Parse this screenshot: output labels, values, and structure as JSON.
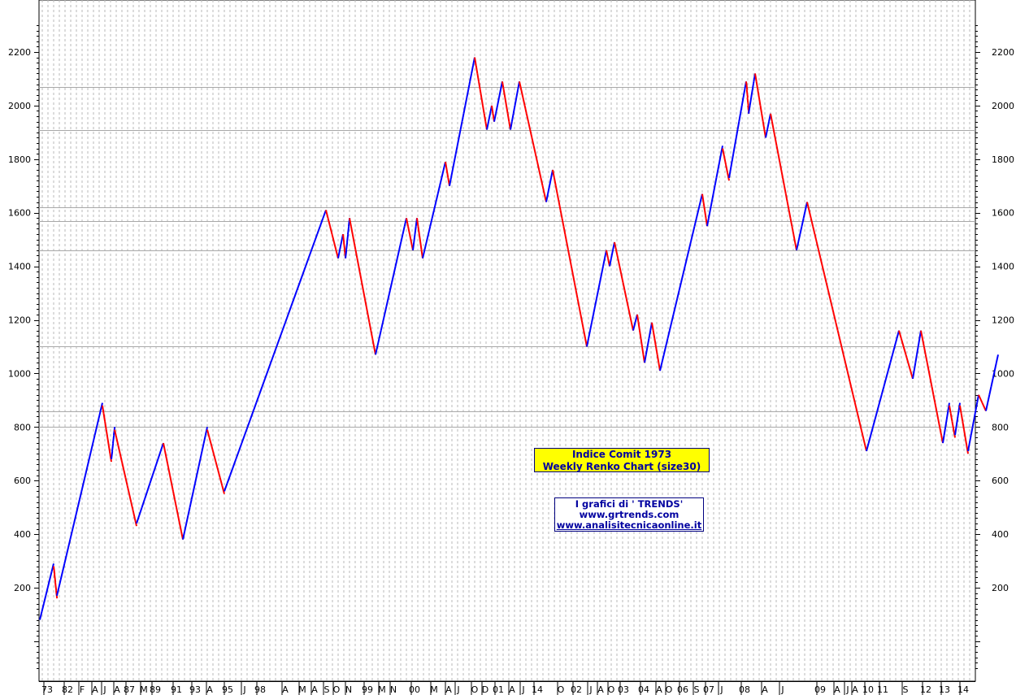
{
  "chart_data": {
    "type": "renko",
    "title": "Indice Comit 1973",
    "subtitle": "Weekly Renko Chart  (size30)",
    "brick_size": 30,
    "ylim": [
      -150,
      2350
    ],
    "y_ticks": [
      200,
      400,
      600,
      800,
      1000,
      1200,
      1400,
      1600,
      1800,
      2000,
      2200
    ],
    "y_tick_labels": [
      "200",
      "400",
      "600",
      "800",
      "1000",
      "1200",
      "1400",
      "1600",
      "1800",
      "2000",
      "2200"
    ],
    "x_labels": [
      "73",
      "82",
      "F",
      "A",
      "J",
      "A",
      "87",
      "M",
      "89",
      "91",
      "93",
      "A",
      "95",
      "J",
      "98",
      "A",
      "M",
      "A",
      "S",
      "O",
      "N",
      "99",
      "M",
      "N",
      "00",
      "M",
      "A",
      "J",
      "O",
      "D",
      "01",
      "A",
      "J",
      "14",
      "O",
      "02",
      "J",
      "A",
      "O",
      "03",
      "04",
      "A",
      "O",
      "06",
      "S",
      "07",
      "J",
      "08",
      "A",
      "J",
      "09",
      "A",
      "J",
      "A",
      "10",
      "11",
      "S",
      "12",
      "13",
      "14"
    ],
    "horizontal_levels": [
      2070,
      1910,
      1620,
      1570,
      1460,
      1100,
      860,
      800
    ],
    "grid": "vertical dashed",
    "up_color": "#0000ff",
    "down_color": "#ff0000",
    "pivots": [
      {
        "x": 1,
        "price": 80
      },
      {
        "x": 18,
        "price": 280
      },
      {
        "x": 22,
        "price": 170
      },
      {
        "x": 78,
        "price": 880
      },
      {
        "x": 89,
        "price": 680
      },
      {
        "x": 93,
        "price": 790
      },
      {
        "x": 120,
        "price": 440
      },
      {
        "x": 153,
        "price": 740
      },
      {
        "x": 177,
        "price": 380
      },
      {
        "x": 207,
        "price": 790
      },
      {
        "x": 228,
        "price": 560
      },
      {
        "x": 353,
        "price": 1610
      },
      {
        "x": 368,
        "price": 1430
      },
      {
        "x": 374,
        "price": 1520
      },
      {
        "x": 377,
        "price": 1430
      },
      {
        "x": 382,
        "price": 1580
      },
      {
        "x": 414,
        "price": 1070
      },
      {
        "x": 452,
        "price": 1580
      },
      {
        "x": 460,
        "price": 1460
      },
      {
        "x": 465,
        "price": 1580
      },
      {
        "x": 472,
        "price": 1430
      },
      {
        "x": 500,
        "price": 1790
      },
      {
        "x": 505,
        "price": 1700
      },
      {
        "x": 536,
        "price": 2180
      },
      {
        "x": 551,
        "price": 1910
      },
      {
        "x": 557,
        "price": 2000
      },
      {
        "x": 560,
        "price": 1940
      },
      {
        "x": 570,
        "price": 2090
      },
      {
        "x": 580,
        "price": 1910
      },
      {
        "x": 591,
        "price": 2090
      },
      {
        "x": 624,
        "price": 1640
      },
      {
        "x": 632,
        "price": 1760
      },
      {
        "x": 674,
        "price": 1100
      },
      {
        "x": 698,
        "price": 1460
      },
      {
        "x": 702,
        "price": 1400
      },
      {
        "x": 708,
        "price": 1490
      },
      {
        "x": 731,
        "price": 1160
      },
      {
        "x": 736,
        "price": 1220
      },
      {
        "x": 745,
        "price": 1040
      },
      {
        "x": 754,
        "price": 1190
      },
      {
        "x": 764,
        "price": 1010
      },
      {
        "x": 816,
        "price": 1670
      },
      {
        "x": 822,
        "price": 1550
      },
      {
        "x": 841,
        "price": 1840
      },
      {
        "x": 849,
        "price": 1730
      },
      {
        "x": 870,
        "price": 2090
      },
      {
        "x": 873,
        "price": 1970
      },
      {
        "x": 881,
        "price": 2120
      },
      {
        "x": 894,
        "price": 1880
      },
      {
        "x": 900,
        "price": 1970
      },
      {
        "x": 932,
        "price": 1460
      },
      {
        "x": 945,
        "price": 1640
      },
      {
        "x": 1018,
        "price": 710
      },
      {
        "x": 1058,
        "price": 1160
      },
      {
        "x": 1075,
        "price": 980
      },
      {
        "x": 1085,
        "price": 1160
      },
      {
        "x": 1112,
        "price": 740
      },
      {
        "x": 1120,
        "price": 880
      },
      {
        "x": 1127,
        "price": 770
      },
      {
        "x": 1133,
        "price": 880
      },
      {
        "x": 1143,
        "price": 710
      },
      {
        "x": 1156,
        "price": 920
      },
      {
        "x": 1165,
        "price": 860
      },
      {
        "x": 1180,
        "price": 1070
      }
    ]
  },
  "boxes": {
    "title_line1": "Indice Comit 1973",
    "title_line2": "Weekly Renko Chart  (size30)",
    "credits_line1": "I grafici di ' TRENDS'",
    "credits_line2": "www.grtrends.com",
    "credits_line3": "www.analisitecnicaonline.it"
  }
}
